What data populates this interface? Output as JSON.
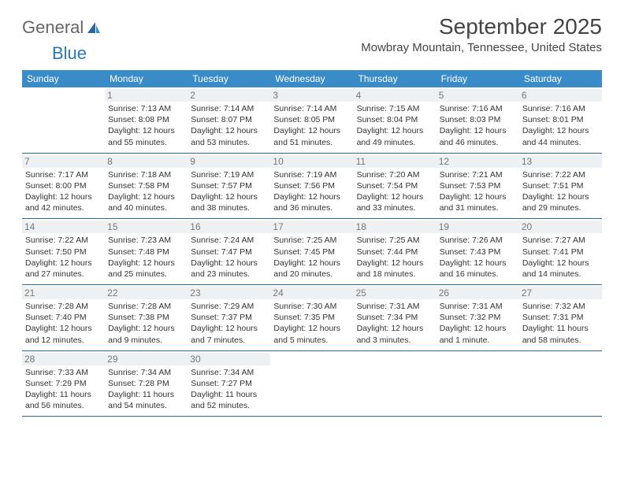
{
  "logo": {
    "text1": "General",
    "text2": "Blue"
  },
  "title": {
    "month_year": "September 2025",
    "location": "Mowbray Mountain, Tennessee, United States"
  },
  "colors": {
    "header_bg": "#3a8cc9",
    "header_text": "#ffffff",
    "daynum_bg": "#eef1f3",
    "daynum_text": "#777777",
    "border": "#2a6a9a",
    "body_text": "#333333",
    "title_text": "#444444",
    "logo_general": "#666666",
    "logo_blue": "#2878b8",
    "background": "#ffffff"
  },
  "fonts": {
    "title_size_pt": 21,
    "location_size_pt": 11,
    "weekday_size_pt": 9,
    "daynum_size_pt": 9,
    "body_size_pt": 8
  },
  "weekdays": [
    "Sunday",
    "Monday",
    "Tuesday",
    "Wednesday",
    "Thursday",
    "Friday",
    "Saturday"
  ],
  "weeks": [
    [
      {
        "num": "",
        "sunrise": "",
        "sunset": "",
        "daylight": ""
      },
      {
        "num": "1",
        "sunrise": "Sunrise: 7:13 AM",
        "sunset": "Sunset: 8:08 PM",
        "daylight": "Daylight: 12 hours and 55 minutes."
      },
      {
        "num": "2",
        "sunrise": "Sunrise: 7:14 AM",
        "sunset": "Sunset: 8:07 PM",
        "daylight": "Daylight: 12 hours and 53 minutes."
      },
      {
        "num": "3",
        "sunrise": "Sunrise: 7:14 AM",
        "sunset": "Sunset: 8:05 PM",
        "daylight": "Daylight: 12 hours and 51 minutes."
      },
      {
        "num": "4",
        "sunrise": "Sunrise: 7:15 AM",
        "sunset": "Sunset: 8:04 PM",
        "daylight": "Daylight: 12 hours and 49 minutes."
      },
      {
        "num": "5",
        "sunrise": "Sunrise: 7:16 AM",
        "sunset": "Sunset: 8:03 PM",
        "daylight": "Daylight: 12 hours and 46 minutes."
      },
      {
        "num": "6",
        "sunrise": "Sunrise: 7:16 AM",
        "sunset": "Sunset: 8:01 PM",
        "daylight": "Daylight: 12 hours and 44 minutes."
      }
    ],
    [
      {
        "num": "7",
        "sunrise": "Sunrise: 7:17 AM",
        "sunset": "Sunset: 8:00 PM",
        "daylight": "Daylight: 12 hours and 42 minutes."
      },
      {
        "num": "8",
        "sunrise": "Sunrise: 7:18 AM",
        "sunset": "Sunset: 7:58 PM",
        "daylight": "Daylight: 12 hours and 40 minutes."
      },
      {
        "num": "9",
        "sunrise": "Sunrise: 7:19 AM",
        "sunset": "Sunset: 7:57 PM",
        "daylight": "Daylight: 12 hours and 38 minutes."
      },
      {
        "num": "10",
        "sunrise": "Sunrise: 7:19 AM",
        "sunset": "Sunset: 7:56 PM",
        "daylight": "Daylight: 12 hours and 36 minutes."
      },
      {
        "num": "11",
        "sunrise": "Sunrise: 7:20 AM",
        "sunset": "Sunset: 7:54 PM",
        "daylight": "Daylight: 12 hours and 33 minutes."
      },
      {
        "num": "12",
        "sunrise": "Sunrise: 7:21 AM",
        "sunset": "Sunset: 7:53 PM",
        "daylight": "Daylight: 12 hours and 31 minutes."
      },
      {
        "num": "13",
        "sunrise": "Sunrise: 7:22 AM",
        "sunset": "Sunset: 7:51 PM",
        "daylight": "Daylight: 12 hours and 29 minutes."
      }
    ],
    [
      {
        "num": "14",
        "sunrise": "Sunrise: 7:22 AM",
        "sunset": "Sunset: 7:50 PM",
        "daylight": "Daylight: 12 hours and 27 minutes."
      },
      {
        "num": "15",
        "sunrise": "Sunrise: 7:23 AM",
        "sunset": "Sunset: 7:48 PM",
        "daylight": "Daylight: 12 hours and 25 minutes."
      },
      {
        "num": "16",
        "sunrise": "Sunrise: 7:24 AM",
        "sunset": "Sunset: 7:47 PM",
        "daylight": "Daylight: 12 hours and 23 minutes."
      },
      {
        "num": "17",
        "sunrise": "Sunrise: 7:25 AM",
        "sunset": "Sunset: 7:45 PM",
        "daylight": "Daylight: 12 hours and 20 minutes."
      },
      {
        "num": "18",
        "sunrise": "Sunrise: 7:25 AM",
        "sunset": "Sunset: 7:44 PM",
        "daylight": "Daylight: 12 hours and 18 minutes."
      },
      {
        "num": "19",
        "sunrise": "Sunrise: 7:26 AM",
        "sunset": "Sunset: 7:43 PM",
        "daylight": "Daylight: 12 hours and 16 minutes."
      },
      {
        "num": "20",
        "sunrise": "Sunrise: 7:27 AM",
        "sunset": "Sunset: 7:41 PM",
        "daylight": "Daylight: 12 hours and 14 minutes."
      }
    ],
    [
      {
        "num": "21",
        "sunrise": "Sunrise: 7:28 AM",
        "sunset": "Sunset: 7:40 PM",
        "daylight": "Daylight: 12 hours and 12 minutes."
      },
      {
        "num": "22",
        "sunrise": "Sunrise: 7:28 AM",
        "sunset": "Sunset: 7:38 PM",
        "daylight": "Daylight: 12 hours and 9 minutes."
      },
      {
        "num": "23",
        "sunrise": "Sunrise: 7:29 AM",
        "sunset": "Sunset: 7:37 PM",
        "daylight": "Daylight: 12 hours and 7 minutes."
      },
      {
        "num": "24",
        "sunrise": "Sunrise: 7:30 AM",
        "sunset": "Sunset: 7:35 PM",
        "daylight": "Daylight: 12 hours and 5 minutes."
      },
      {
        "num": "25",
        "sunrise": "Sunrise: 7:31 AM",
        "sunset": "Sunset: 7:34 PM",
        "daylight": "Daylight: 12 hours and 3 minutes."
      },
      {
        "num": "26",
        "sunrise": "Sunrise: 7:31 AM",
        "sunset": "Sunset: 7:32 PM",
        "daylight": "Daylight: 12 hours and 1 minute."
      },
      {
        "num": "27",
        "sunrise": "Sunrise: 7:32 AM",
        "sunset": "Sunset: 7:31 PM",
        "daylight": "Daylight: 11 hours and 58 minutes."
      }
    ],
    [
      {
        "num": "28",
        "sunrise": "Sunrise: 7:33 AM",
        "sunset": "Sunset: 7:29 PM",
        "daylight": "Daylight: 11 hours and 56 minutes."
      },
      {
        "num": "29",
        "sunrise": "Sunrise: 7:34 AM",
        "sunset": "Sunset: 7:28 PM",
        "daylight": "Daylight: 11 hours and 54 minutes."
      },
      {
        "num": "30",
        "sunrise": "Sunrise: 7:34 AM",
        "sunset": "Sunset: 7:27 PM",
        "daylight": "Daylight: 11 hours and 52 minutes."
      },
      {
        "num": "",
        "sunrise": "",
        "sunset": "",
        "daylight": ""
      },
      {
        "num": "",
        "sunrise": "",
        "sunset": "",
        "daylight": ""
      },
      {
        "num": "",
        "sunrise": "",
        "sunset": "",
        "daylight": ""
      },
      {
        "num": "",
        "sunrise": "",
        "sunset": "",
        "daylight": ""
      }
    ]
  ]
}
